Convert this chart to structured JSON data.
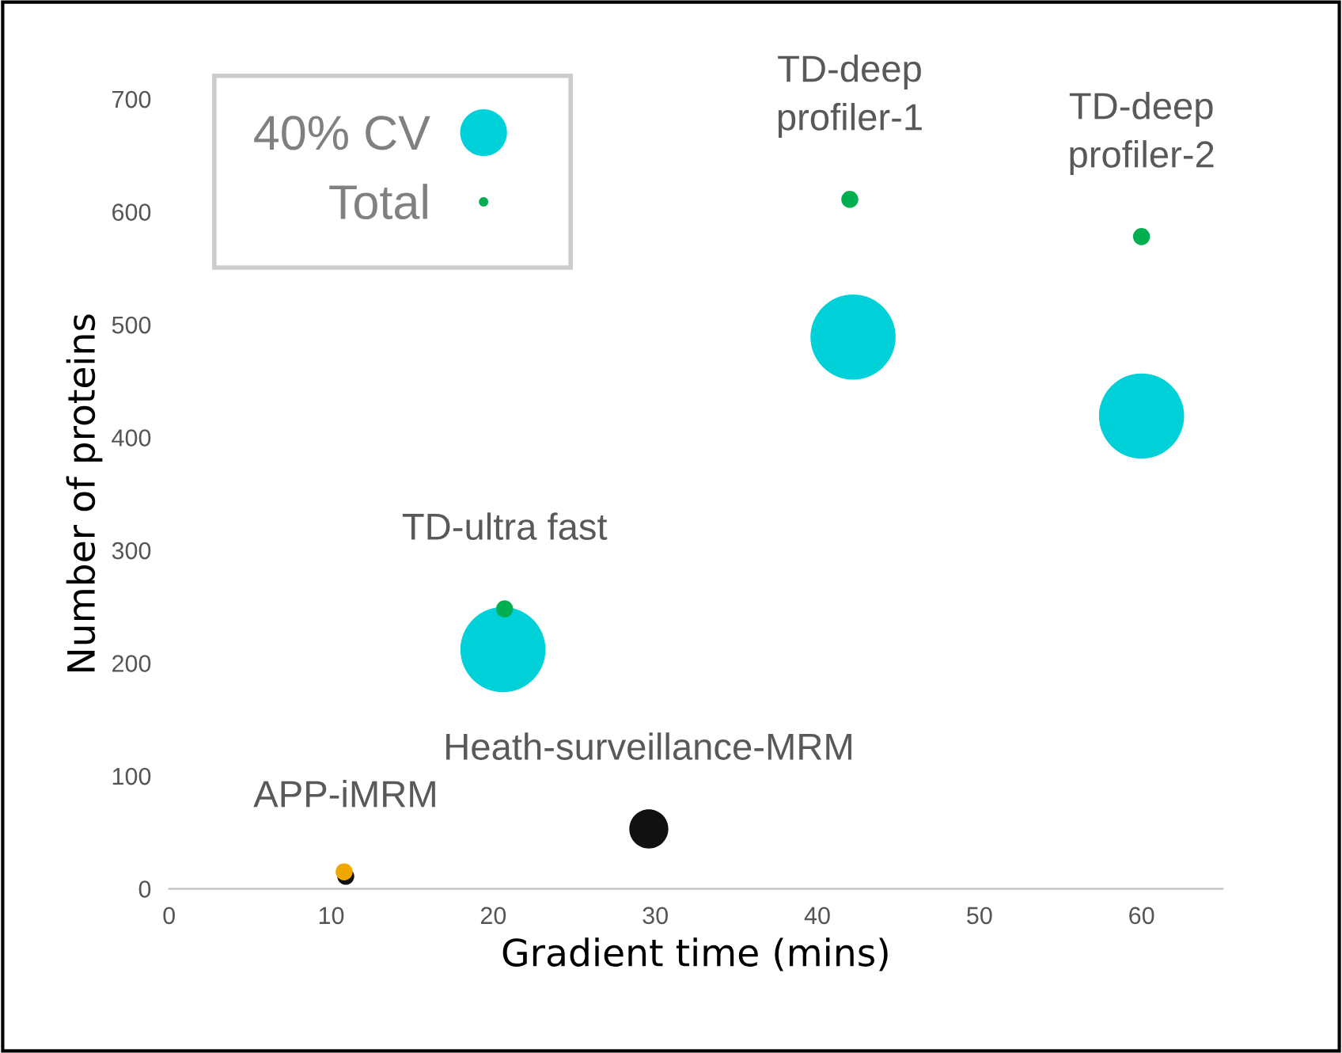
{
  "chart_data": {
    "type": "bubble",
    "xlabel": "Gradient time (mins)",
    "ylabel": "Number of proteins",
    "xlim": [
      0,
      65
    ],
    "xticks": [
      0,
      10,
      20,
      30,
      40,
      50,
      60
    ],
    "ylim": [
      0,
      700
    ],
    "yticks": [
      0,
      100,
      200,
      300,
      400,
      500,
      600,
      700
    ],
    "grid": false,
    "legend": "top left",
    "series": [
      {
        "name": "40% CV",
        "color": "#00d0d8",
        "colors": [
          "#111111",
          "#00d0d8",
          "#111111",
          "#00d0d8",
          "#00d0d8"
        ],
        "x": [
          10.9,
          20.6,
          29.6,
          42.2,
          60.0
        ],
        "values": [
          11,
          212,
          53,
          489,
          419
        ],
        "sizes": [
          0.04,
          1,
          0.21,
          1,
          1
        ]
      },
      {
        "name": "Total",
        "color": "#00b050",
        "colors": [
          "#f0a800",
          "#00b050",
          "#00b050",
          "#00b050"
        ],
        "x": [
          10.8,
          20.7,
          42.0,
          60.0
        ],
        "values": [
          15,
          248,
          611,
          578
        ],
        "sizes": [
          0.04,
          0.04,
          0.04,
          0.04
        ]
      }
    ],
    "annotations": [
      {
        "text": "APP-iMRM",
        "x": 10.9,
        "y": 11
      },
      {
        "text": "TD-ultra fast",
        "x": 20.7,
        "y": 248
      },
      {
        "text": "Heath-surveillance-MRM",
        "x": 29.6,
        "y": 53
      },
      {
        "text": "TD-deep\nprofiler-1",
        "x": 42.0,
        "y": 611
      },
      {
        "text": "TD-deep\nprofiler-2",
        "x": 60.0,
        "y": 578
      }
    ]
  }
}
